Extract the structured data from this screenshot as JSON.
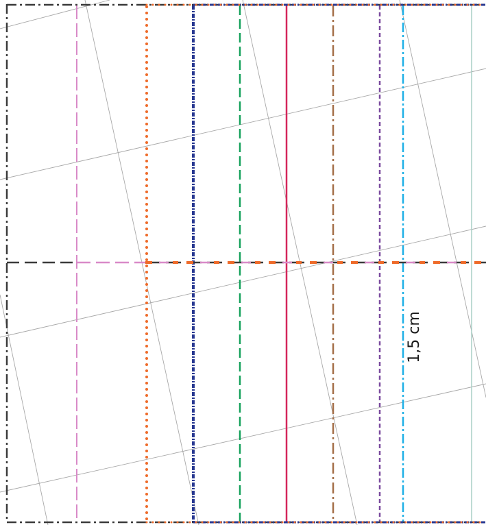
{
  "annotation": {
    "measurement_label": "1,5 cm"
  },
  "colors": {
    "border": "#3a3a3a",
    "grain_line": "#3a3a3a",
    "grid_line": "#a8a8a8",
    "pink": "#d98ac8",
    "orange": "#ee6b2a",
    "navy": "#283891",
    "green": "#16a15c",
    "crimson": "#d4265a",
    "brown": "#a46f48",
    "purple": "#7a4a9e",
    "cyan": "#1fb0e6",
    "pale_teal": "#a9cfc6",
    "label_text": "#1a1a1a"
  },
  "size_lines": [
    {
      "name": "pink",
      "style": "long-dash"
    },
    {
      "name": "orange",
      "style": "dotted"
    },
    {
      "name": "navy",
      "style": "dense-dash-dot"
    },
    {
      "name": "green",
      "style": "dash"
    },
    {
      "name": "crimson",
      "style": "solid"
    },
    {
      "name": "brown",
      "style": "dash-dot"
    },
    {
      "name": "purple",
      "style": "short-dash"
    },
    {
      "name": "cyan",
      "style": "dash-dot"
    },
    {
      "name": "pale_teal",
      "style": "solid"
    }
  ]
}
